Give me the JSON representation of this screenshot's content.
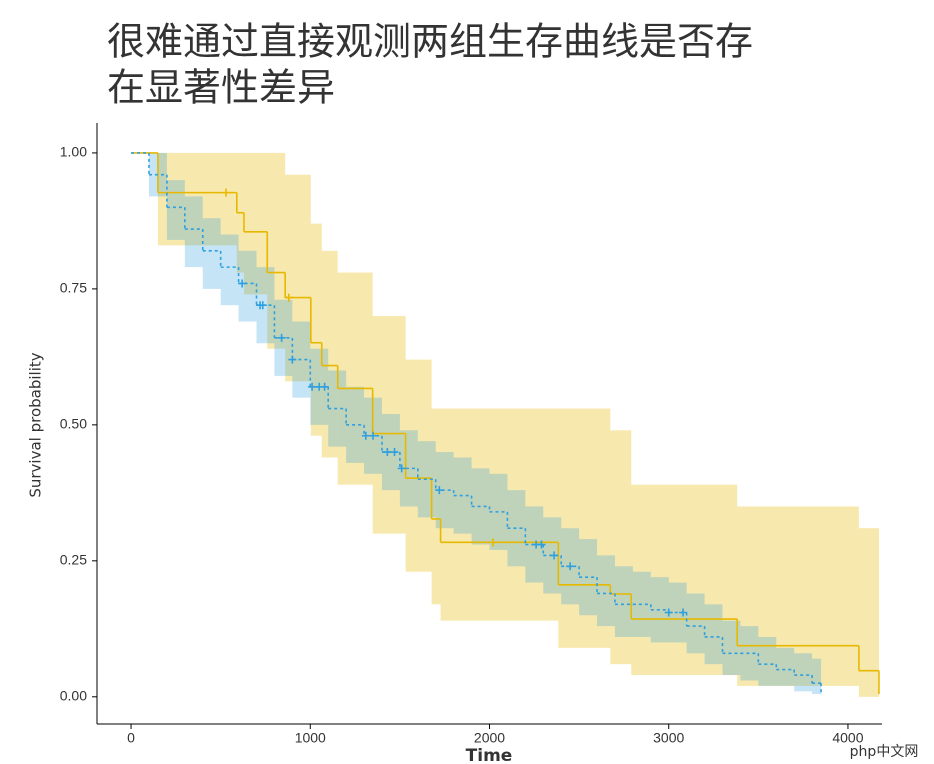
{
  "chart_data": {
    "type": "step",
    "title": [
      "很难通过直接观测两组生存曲线是否存",
      "在显著性差异"
    ],
    "xlabel": "Time",
    "ylabel": "Survival probability",
    "watermark": "php中文网",
    "xlim": [
      -190,
      4190
    ],
    "ylim": [
      -0.05,
      1.055
    ],
    "xticks": [
      0,
      1000,
      2000,
      3000,
      4000
    ],
    "yticks": [
      {
        "value": 0,
        "label": "0.00"
      },
      {
        "value": 0.25,
        "label": "0.25"
      },
      {
        "value": 0.5,
        "label": "0.50"
      },
      {
        "value": 0.75,
        "label": "0.75"
      },
      {
        "value": 1,
        "label": "1.00"
      }
    ],
    "series": [
      {
        "color": "#e7b800",
        "dash": false,
        "x": [
          0,
          150,
          590,
          630,
          760,
          860,
          1003,
          1064,
          1153,
          1348,
          1532,
          1677,
          1727,
          2384,
          2674,
          2791,
          3382,
          4061,
          4173
        ],
        "values": [
          1,
          0.927,
          0.89,
          0.855,
          0.78,
          0.734,
          0.651,
          0.609,
          0.567,
          0.484,
          0.402,
          0.327,
          0.284,
          0.206,
          0.189,
          0.143,
          0.094,
          0.048,
          0.005
        ],
        "upper": [
          1,
          1,
          1,
          1,
          1,
          0.96,
          0.87,
          0.82,
          0.78,
          0.7,
          0.62,
          0.53,
          0.53,
          0.53,
          0.49,
          0.39,
          0.35,
          0.31,
          0.31
        ],
        "lower": [
          1,
          0.83,
          0.78,
          0.74,
          0.64,
          0.58,
          0.48,
          0.44,
          0.39,
          0.3,
          0.23,
          0.17,
          0.14,
          0.09,
          0.06,
          0.04,
          0.02,
          0,
          0
        ],
        "censor_x": [
          530,
          880,
          2020
        ]
      },
      {
        "color": "#2e9fdf",
        "dash": true,
        "x": [
          0,
          100,
          200,
          300,
          400,
          500,
          600,
          700,
          800,
          900,
          1000,
          1100,
          1200,
          1300,
          1400,
          1500,
          1600,
          1700,
          1800,
          1900,
          2000,
          2100,
          2200,
          2300,
          2400,
          2500,
          2600,
          2700,
          2800,
          2900,
          3000,
          3100,
          3200,
          3300,
          3400,
          3500,
          3600,
          3700,
          3800,
          3850
        ],
        "values": [
          1,
          0.96,
          0.9,
          0.86,
          0.82,
          0.79,
          0.76,
          0.72,
          0.66,
          0.62,
          0.57,
          0.53,
          0.5,
          0.48,
          0.45,
          0.42,
          0.4,
          0.38,
          0.37,
          0.35,
          0.34,
          0.31,
          0.28,
          0.26,
          0.24,
          0.22,
          0.19,
          0.17,
          0.17,
          0.16,
          0.155,
          0.13,
          0.11,
          0.08,
          0.08,
          0.06,
          0.05,
          0.04,
          0.025,
          0.005
        ],
        "upper": [
          1,
          1,
          0.95,
          0.92,
          0.88,
          0.85,
          0.82,
          0.79,
          0.73,
          0.69,
          0.64,
          0.6,
          0.57,
          0.55,
          0.52,
          0.49,
          0.47,
          0.45,
          0.44,
          0.42,
          0.41,
          0.38,
          0.35,
          0.33,
          0.31,
          0.29,
          0.26,
          0.24,
          0.23,
          0.22,
          0.21,
          0.19,
          0.17,
          0.14,
          0.13,
          0.11,
          0.09,
          0.08,
          0.07,
          0.06
        ],
        "lower": [
          1,
          0.92,
          0.84,
          0.79,
          0.75,
          0.72,
          0.69,
          0.65,
          0.59,
          0.55,
          0.5,
          0.46,
          0.43,
          0.41,
          0.38,
          0.35,
          0.33,
          0.31,
          0.3,
          0.28,
          0.27,
          0.24,
          0.21,
          0.19,
          0.17,
          0.15,
          0.13,
          0.11,
          0.11,
          0.1,
          0.1,
          0.08,
          0.06,
          0.04,
          0.03,
          0.02,
          0.02,
          0.01,
          0.005,
          0
        ],
        "censor_x": [
          620,
          720,
          735,
          840,
          900,
          1010,
          1050,
          1080,
          1310,
          1350,
          1430,
          1470,
          1510,
          1720,
          2260,
          2290,
          2360,
          2450,
          3000,
          3080
        ]
      }
    ]
  }
}
